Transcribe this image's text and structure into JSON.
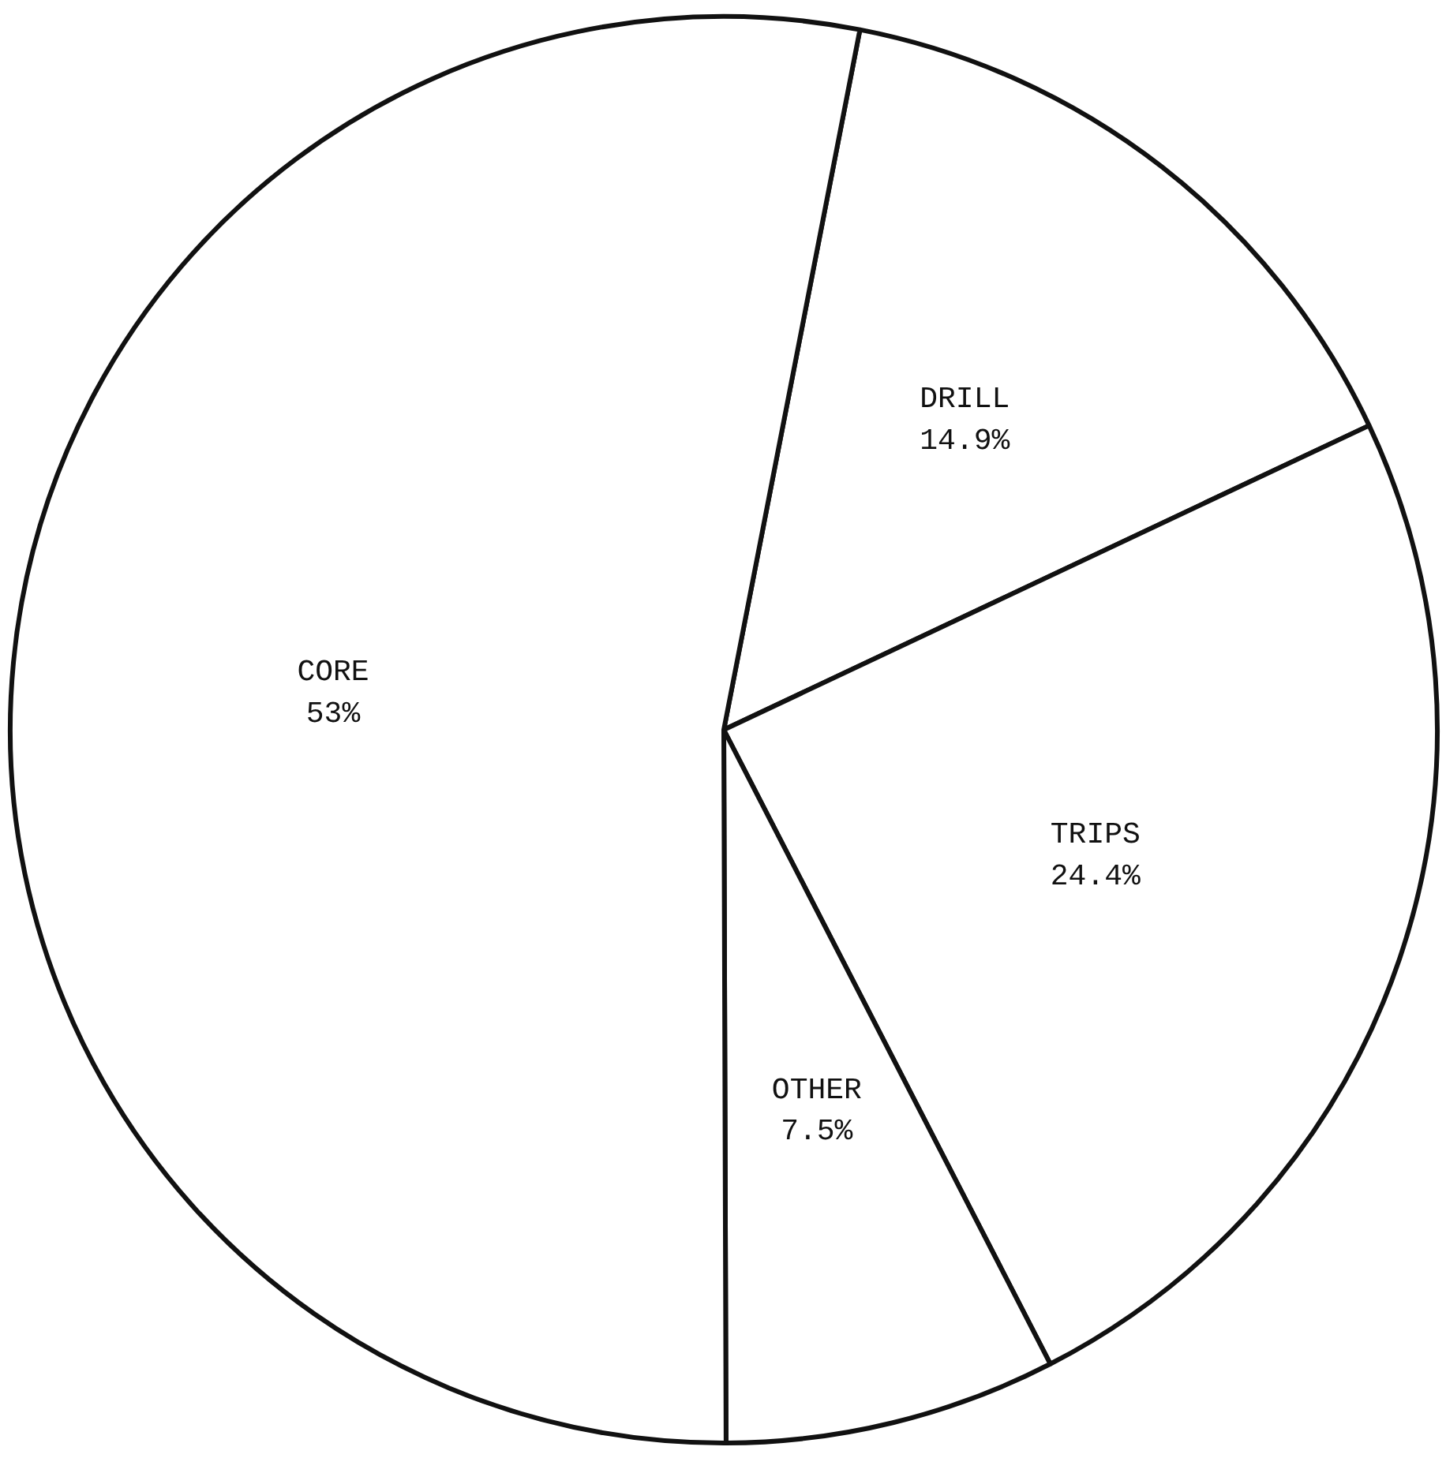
{
  "chart_data": {
    "type": "pie",
    "categories": [
      "DRILL",
      "TRIPS",
      "OTHER",
      "CORE"
    ],
    "values": [
      14.9,
      24.4,
      7.5,
      53
    ],
    "value_labels": [
      "14.9%",
      "24.4%",
      "7.5%",
      "53%"
    ],
    "colors": [
      "#ffffff",
      "#ffffff",
      "#ffffff",
      "#ffffff"
    ]
  }
}
